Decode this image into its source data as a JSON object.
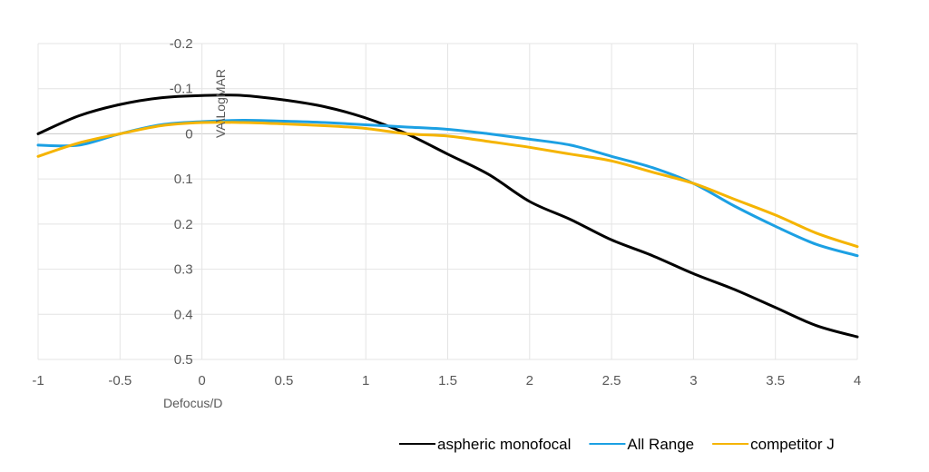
{
  "chart_data": {
    "type": "line",
    "title": "",
    "xlabel": "Defocus/D",
    "ylabel": "VA\\LogMAR",
    "xlim": [
      -1,
      4
    ],
    "ylim": [
      -0.2,
      0.5
    ],
    "y_reversed": true,
    "x_ticks": [
      -1,
      -0.5,
      0,
      0.5,
      1,
      1.5,
      2,
      2.5,
      3,
      3.5,
      4
    ],
    "x_tick_labels": [
      "-1",
      "-0.5",
      "0",
      "0.5",
      "1",
      "1.5",
      "2",
      "2.5",
      "3",
      "3.5",
      "4"
    ],
    "y_ticks": [
      -0.2,
      -0.1,
      0,
      0.1,
      0.2,
      0.3,
      0.4,
      0.5
    ],
    "y_tick_labels": [
      "-0.2",
      "-0.1",
      "0",
      "0.1",
      "0.2",
      "0.3",
      "0.4",
      "0.5"
    ],
    "grid": true,
    "legend_position": "bottom-right",
    "x": [
      -1,
      -0.75,
      -0.5,
      -0.25,
      0,
      0.25,
      0.5,
      0.75,
      1,
      1.25,
      1.5,
      1.75,
      2,
      2.25,
      2.5,
      2.75,
      3,
      3.25,
      3.5,
      3.75,
      4
    ],
    "series": [
      {
        "name": "aspheric monofocal",
        "color": "#000000",
        "values": [
          0.0,
          -0.04,
          -0.065,
          -0.08,
          -0.085,
          -0.085,
          -0.075,
          -0.06,
          -0.035,
          0.0,
          0.045,
          0.09,
          0.15,
          0.19,
          0.235,
          0.27,
          0.31,
          0.345,
          0.385,
          0.425,
          0.45
        ]
      },
      {
        "name": "All Range",
        "color": "#1CA0E3",
        "values": [
          0.025,
          0.025,
          0.0,
          -0.02,
          -0.027,
          -0.03,
          -0.028,
          -0.025,
          -0.02,
          -0.015,
          -0.01,
          0.0,
          0.012,
          0.025,
          0.05,
          0.075,
          0.11,
          0.16,
          0.205,
          0.245,
          0.27
        ]
      },
      {
        "name": "competitor J",
        "color": "#F5B400",
        "values": [
          0.05,
          0.02,
          0.0,
          -0.018,
          -0.025,
          -0.025,
          -0.022,
          -0.018,
          -0.012,
          0.0,
          0.005,
          0.017,
          0.03,
          0.045,
          0.06,
          0.085,
          0.11,
          0.145,
          0.18,
          0.22,
          0.25
        ]
      }
    ]
  }
}
